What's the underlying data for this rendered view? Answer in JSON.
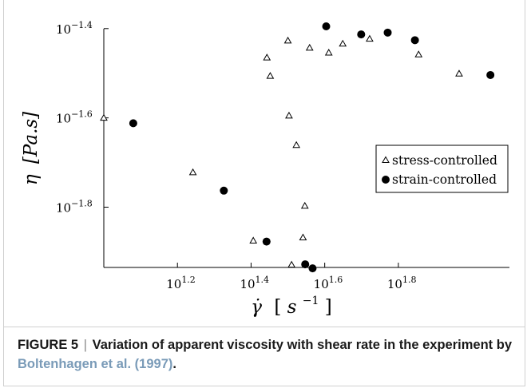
{
  "chart_data": {
    "type": "scatter",
    "x_scale": "log",
    "y_scale": "log",
    "xlim_exp": [
      1.0,
      2.08
    ],
    "ylim_exp": [
      -1.935,
      -1.395
    ],
    "xticks": [
      {
        "base": "10",
        "exp": "1.2",
        "value_exp": 1.2
      },
      {
        "base": "10",
        "exp": "1.4",
        "value_exp": 1.4
      },
      {
        "base": "10",
        "exp": "1.6",
        "value_exp": 1.6
      },
      {
        "base": "10",
        "exp": "1.8",
        "value_exp": 1.8
      }
    ],
    "yticks": [
      {
        "base": "10",
        "exp": "−1.4",
        "value_exp": -1.4
      },
      {
        "base": "10",
        "exp": "−1.6",
        "value_exp": -1.6
      },
      {
        "base": "10",
        "exp": "−1.8",
        "value_exp": -1.8
      }
    ],
    "xlabel": {
      "sym": "γ̇",
      "unit_open": "[",
      "unit_base": "s",
      "unit_exp": "−1",
      "unit_close": "]"
    },
    "ylabel": {
      "sym": "η",
      "unit": "[Pa.s]"
    },
    "legend_position": "right",
    "series": [
      {
        "name": "stress-controlled",
        "marker": "triangle",
        "log10_points": [
          [
            1.0,
            -1.6
          ],
          [
            1.242,
            -1.722
          ],
          [
            1.443,
            -1.465
          ],
          [
            1.452,
            -1.506
          ],
          [
            1.5,
            -1.427
          ],
          [
            1.503,
            -1.595
          ],
          [
            1.559,
            -1.443
          ],
          [
            1.611,
            -1.454
          ],
          [
            1.523,
            -1.661
          ],
          [
            1.546,
            -1.797
          ],
          [
            1.541,
            -1.868
          ],
          [
            1.406,
            -1.875
          ],
          [
            1.51,
            -1.929
          ],
          [
            1.649,
            -1.434
          ],
          [
            1.722,
            -1.423
          ],
          [
            1.855,
            -1.458
          ],
          [
            1.965,
            -1.501
          ]
        ]
      },
      {
        "name": "strain-controlled",
        "marker": "circle",
        "log10_points": [
          [
            1.08,
            -1.612
          ],
          [
            1.326,
            -1.763
          ],
          [
            1.442,
            -1.877
          ],
          [
            1.547,
            -1.928
          ],
          [
            1.567,
            -1.937
          ],
          [
            1.604,
            -1.395
          ],
          [
            1.699,
            -1.413
          ],
          [
            1.771,
            -1.409
          ],
          [
            1.845,
            -1.426
          ],
          [
            2.05,
            -1.504
          ]
        ]
      }
    ]
  },
  "caption": {
    "figure_label": "FIGURE 5",
    "separator": "|",
    "title": "Variation of apparent viscosity with shear rate in the experiment by",
    "reference": "Boltenhagen et al. (1997)",
    "end": "."
  }
}
